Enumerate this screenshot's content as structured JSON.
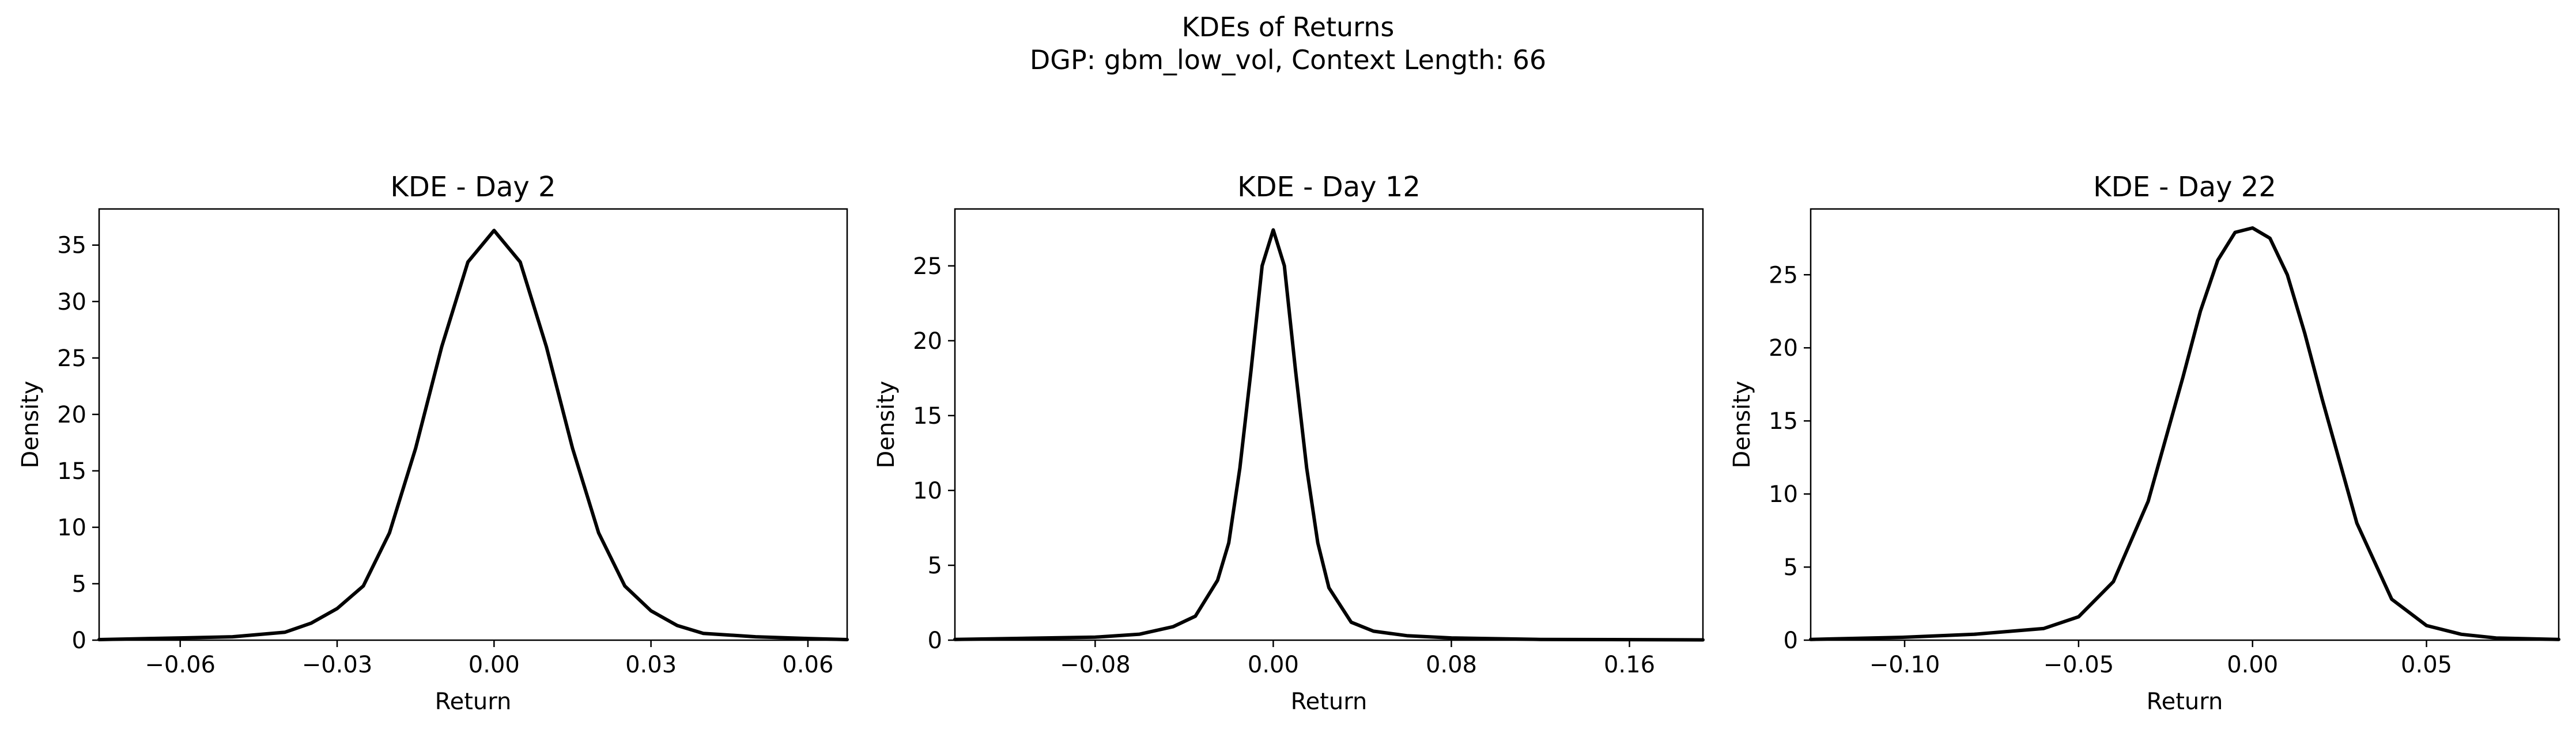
{
  "figure": {
    "suptitle_line1": "KDEs of Returns",
    "suptitle_line2": "DGP: gbm_low_vol, Context Length: 66"
  },
  "chart_data": [
    {
      "type": "line",
      "title": "KDE - Day 2",
      "xlabel": "Return",
      "ylabel": "Density",
      "xlim": [
        -0.0755,
        0.0675
      ],
      "ylim": [
        0,
        38.2
      ],
      "xticks": [
        -0.06,
        -0.03,
        0.0,
        0.03,
        0.06
      ],
      "xtick_labels": [
        "−0.06",
        "−0.03",
        "0.00",
        "0.03",
        "0.06"
      ],
      "yticks": [
        0,
        5,
        10,
        15,
        20,
        25,
        30,
        35
      ],
      "ytick_labels": [
        "0",
        "5",
        "10",
        "15",
        "20",
        "25",
        "30",
        "35"
      ],
      "grid": false,
      "series": [
        {
          "color": "#000000",
          "x": [
            -0.0755,
            -0.06,
            -0.05,
            -0.04,
            -0.035,
            -0.03,
            -0.025,
            -0.02,
            -0.015,
            -0.01,
            -0.005,
            0.0,
            0.005,
            0.01,
            0.015,
            0.02,
            0.025,
            0.03,
            0.035,
            0.04,
            0.05,
            0.06,
            0.0675
          ],
          "y": [
            0.05,
            0.2,
            0.3,
            0.7,
            1.5,
            2.8,
            4.8,
            9.5,
            17.0,
            26.0,
            33.5,
            36.3,
            33.5,
            26.0,
            17.0,
            9.5,
            4.8,
            2.6,
            1.3,
            0.6,
            0.3,
            0.15,
            0.05
          ]
        }
      ]
    },
    {
      "type": "line",
      "title": "KDE - Day 12",
      "xlabel": "Return",
      "ylabel": "Density",
      "xlim": [
        -0.143,
        0.193
      ],
      "ylim": [
        0,
        28.8
      ],
      "xticks": [
        -0.08,
        0.0,
        0.08,
        0.16
      ],
      "xtick_labels": [
        "−0.08",
        "0.00",
        "0.08",
        "0.16"
      ],
      "yticks": [
        0,
        5,
        10,
        15,
        20,
        25
      ],
      "ytick_labels": [
        "0",
        "5",
        "10",
        "15",
        "20",
        "25"
      ],
      "grid": false,
      "series": [
        {
          "color": "#000000",
          "x": [
            -0.143,
            -0.08,
            -0.06,
            -0.045,
            -0.035,
            -0.025,
            -0.02,
            -0.015,
            -0.01,
            -0.005,
            0.0,
            0.005,
            0.01,
            0.015,
            0.02,
            0.025,
            0.035,
            0.045,
            0.06,
            0.08,
            0.12,
            0.193
          ],
          "y": [
            0.05,
            0.2,
            0.4,
            0.9,
            1.6,
            4.0,
            6.5,
            11.5,
            18.0,
            25.0,
            27.4,
            25.0,
            18.0,
            11.5,
            6.5,
            3.5,
            1.2,
            0.6,
            0.3,
            0.15,
            0.05,
            0.02
          ]
        }
      ]
    },
    {
      "type": "line",
      "title": "KDE - Day 22",
      "xlabel": "Return",
      "ylabel": "Density",
      "xlim": [
        -0.127,
        0.088
      ],
      "ylim": [
        0,
        29.5
      ],
      "xticks": [
        -0.1,
        -0.05,
        0.0,
        0.05
      ],
      "xtick_labels": [
        "−0.10",
        "−0.05",
        "0.00",
        "0.05"
      ],
      "yticks": [
        0,
        5,
        10,
        15,
        20,
        25
      ],
      "ytick_labels": [
        "0",
        "5",
        "10",
        "15",
        "20",
        "25"
      ],
      "grid": false,
      "series": [
        {
          "color": "#000000",
          "x": [
            -0.127,
            -0.1,
            -0.08,
            -0.06,
            -0.05,
            -0.04,
            -0.03,
            -0.02,
            -0.015,
            -0.01,
            -0.005,
            0.0,
            0.005,
            0.01,
            0.015,
            0.02,
            0.03,
            0.04,
            0.05,
            0.06,
            0.07,
            0.088
          ],
          "y": [
            0.05,
            0.2,
            0.4,
            0.8,
            1.6,
            4.0,
            9.5,
            18.0,
            22.5,
            26.0,
            27.9,
            28.2,
            27.5,
            25.0,
            21.0,
            16.5,
            8.0,
            2.8,
            1.0,
            0.4,
            0.15,
            0.05
          ]
        }
      ]
    }
  ]
}
